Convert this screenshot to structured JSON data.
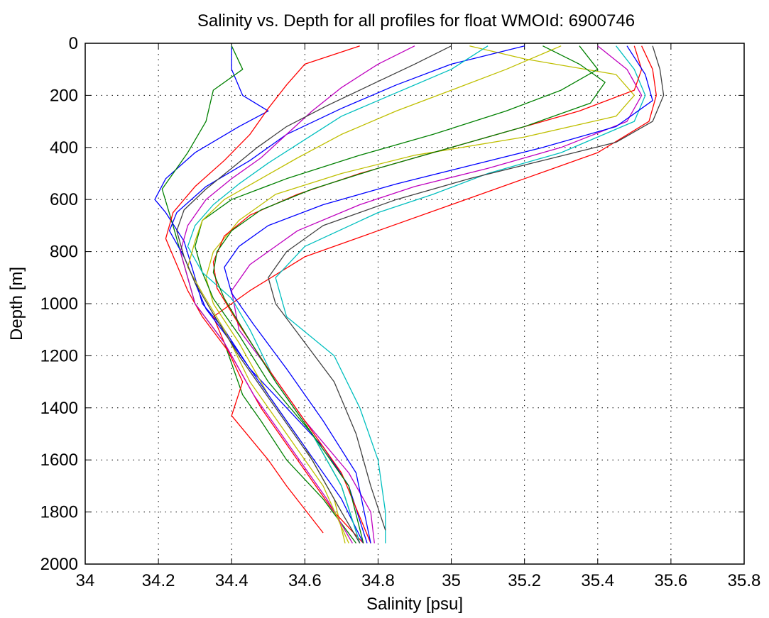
{
  "chart_data": {
    "type": "line",
    "title": "Salinity vs. Depth for all profiles for float WMOId: 6900746",
    "xlabel": "Salinity [psu]",
    "ylabel": "Depth [m]",
    "xlim": [
      34,
      35.8
    ],
    "ylim": [
      0,
      2000
    ],
    "y_reversed": true,
    "grid": true,
    "legend": "none",
    "x_ticks": [
      "34",
      "34.2",
      "34.4",
      "34.6",
      "34.8",
      "35",
      "35.2",
      "35.4",
      "35.6",
      "35.8"
    ],
    "y_ticks": [
      "0",
      "200",
      "400",
      "600",
      "800",
      "1000",
      "1200",
      "1400",
      "1600",
      "1800",
      "2000"
    ],
    "colors": [
      "#0000ff",
      "#008000",
      "#ff0000",
      "#00bfbf",
      "#bf00bf",
      "#bfbf00",
      "#404040"
    ],
    "series": [
      {
        "color": "#0000ff",
        "points": [
          [
            34.4,
            10
          ],
          [
            34.4,
            100
          ],
          [
            34.43,
            200
          ],
          [
            34.5,
            260
          ],
          [
            34.42,
            320
          ],
          [
            34.3,
            420
          ],
          [
            34.22,
            520
          ],
          [
            34.19,
            600
          ],
          [
            34.22,
            650
          ],
          [
            34.27,
            760
          ],
          [
            34.3,
            900
          ],
          [
            34.32,
            1000
          ],
          [
            34.38,
            1100
          ],
          [
            34.45,
            1250
          ],
          [
            34.55,
            1400
          ],
          [
            34.65,
            1550
          ],
          [
            34.72,
            1700
          ],
          [
            34.77,
            1920
          ]
        ]
      },
      {
        "color": "#008000",
        "points": [
          [
            34.4,
            10
          ],
          [
            34.43,
            100
          ],
          [
            34.35,
            180
          ],
          [
            34.33,
            300
          ],
          [
            34.28,
            420
          ],
          [
            34.21,
            560
          ],
          [
            34.24,
            700
          ],
          [
            34.27,
            850
          ],
          [
            34.3,
            1000
          ],
          [
            34.38,
            1150
          ],
          [
            34.43,
            1350
          ],
          [
            34.48,
            1450
          ],
          [
            34.55,
            1600
          ],
          [
            34.65,
            1750
          ],
          [
            34.74,
            1920
          ]
        ]
      },
      {
        "color": "#ff0000",
        "points": [
          [
            35.52,
            10
          ],
          [
            35.55,
            100
          ],
          [
            35.56,
            200
          ],
          [
            35.54,
            300
          ],
          [
            35.4,
            420
          ],
          [
            35.2,
            520
          ],
          [
            35.0,
            620
          ],
          [
            34.8,
            720
          ],
          [
            34.6,
            820
          ],
          [
            34.45,
            950
          ],
          [
            34.35,
            1050
          ],
          [
            34.38,
            1150
          ],
          [
            34.43,
            1300
          ],
          [
            34.4,
            1430
          ],
          [
            34.5,
            1600
          ],
          [
            34.55,
            1700
          ],
          [
            34.65,
            1880
          ]
        ]
      },
      {
        "color": "#00bfbf",
        "points": [
          [
            35.45,
            10
          ],
          [
            35.5,
            100
          ],
          [
            35.53,
            200
          ],
          [
            35.5,
            300
          ],
          [
            35.3,
            420
          ],
          [
            35.1,
            500
          ],
          [
            34.95,
            580
          ],
          [
            34.8,
            650
          ],
          [
            34.6,
            780
          ],
          [
            34.52,
            900
          ],
          [
            34.55,
            1050
          ],
          [
            34.68,
            1200
          ],
          [
            34.75,
            1400
          ],
          [
            34.8,
            1600
          ],
          [
            34.82,
            1800
          ],
          [
            34.82,
            1920
          ]
        ]
      },
      {
        "color": "#bf00bf",
        "points": [
          [
            35.4,
            10
          ],
          [
            35.48,
            100
          ],
          [
            35.52,
            200
          ],
          [
            35.48,
            300
          ],
          [
            35.3,
            400
          ],
          [
            35.1,
            480
          ],
          [
            34.9,
            550
          ],
          [
            34.75,
            620
          ],
          [
            34.58,
            720
          ],
          [
            34.45,
            850
          ],
          [
            34.4,
            950
          ],
          [
            34.42,
            1100
          ],
          [
            34.5,
            1250
          ],
          [
            34.6,
            1450
          ],
          [
            34.72,
            1650
          ],
          [
            34.78,
            1800
          ],
          [
            34.79,
            1920
          ]
        ]
      },
      {
        "color": "#bfbf00",
        "points": [
          [
            35.05,
            10
          ],
          [
            35.2,
            60
          ],
          [
            35.45,
            120
          ],
          [
            35.5,
            200
          ],
          [
            35.45,
            280
          ],
          [
            35.2,
            360
          ],
          [
            34.9,
            430
          ],
          [
            34.7,
            500
          ],
          [
            34.52,
            580
          ],
          [
            34.42,
            680
          ],
          [
            34.35,
            800
          ],
          [
            34.33,
            900
          ],
          [
            34.35,
            1000
          ],
          [
            34.42,
            1150
          ],
          [
            34.5,
            1350
          ],
          [
            34.6,
            1550
          ],
          [
            34.68,
            1750
          ],
          [
            34.71,
            1920
          ]
        ]
      },
      {
        "color": "#404040",
        "points": [
          [
            35.55,
            10
          ],
          [
            35.57,
            100
          ],
          [
            35.58,
            200
          ],
          [
            35.55,
            300
          ],
          [
            35.45,
            380
          ],
          [
            35.25,
            450
          ],
          [
            35.05,
            520
          ],
          [
            34.85,
            600
          ],
          [
            34.65,
            700
          ],
          [
            34.55,
            800
          ],
          [
            34.5,
            900
          ],
          [
            34.52,
            1000
          ],
          [
            34.6,
            1150
          ],
          [
            34.68,
            1300
          ],
          [
            34.74,
            1500
          ],
          [
            34.78,
            1700
          ],
          [
            34.82,
            1870
          ]
        ]
      },
      {
        "color": "#ff0000",
        "points": [
          [
            34.75,
            10
          ],
          [
            34.6,
            80
          ],
          [
            34.55,
            160
          ],
          [
            34.5,
            250
          ],
          [
            34.45,
            350
          ],
          [
            34.38,
            450
          ],
          [
            34.3,
            550
          ],
          [
            34.24,
            650
          ],
          [
            34.22,
            750
          ],
          [
            34.25,
            850
          ],
          [
            34.28,
            950
          ],
          [
            34.32,
            1050
          ],
          [
            34.4,
            1200
          ],
          [
            34.48,
            1400
          ],
          [
            34.58,
            1600
          ],
          [
            34.68,
            1800
          ],
          [
            34.76,
            1920
          ]
        ]
      },
      {
        "color": "#0000ff",
        "points": [
          [
            35.2,
            10
          ],
          [
            35.0,
            80
          ],
          [
            34.85,
            160
          ],
          [
            34.7,
            250
          ],
          [
            34.55,
            350
          ],
          [
            34.45,
            450
          ],
          [
            34.33,
            550
          ],
          [
            34.25,
            650
          ],
          [
            34.23,
            720
          ],
          [
            34.27,
            820
          ],
          [
            34.3,
            920
          ],
          [
            34.33,
            1020
          ],
          [
            34.4,
            1150
          ],
          [
            34.5,
            1350
          ],
          [
            34.6,
            1550
          ],
          [
            34.7,
            1750
          ],
          [
            34.76,
            1920
          ]
        ]
      },
      {
        "color": "#008000",
        "points": [
          [
            35.35,
            10
          ],
          [
            35.4,
            100
          ],
          [
            35.3,
            180
          ],
          [
            35.15,
            260
          ],
          [
            34.95,
            350
          ],
          [
            34.75,
            430
          ],
          [
            34.55,
            520
          ],
          [
            34.4,
            600
          ],
          [
            34.32,
            680
          ],
          [
            34.3,
            780
          ],
          [
            34.32,
            880
          ],
          [
            34.35,
            980
          ],
          [
            34.42,
            1120
          ],
          [
            34.5,
            1300
          ],
          [
            34.62,
            1500
          ],
          [
            34.7,
            1700
          ],
          [
            34.75,
            1920
          ]
        ]
      },
      {
        "color": "#bf00bf",
        "points": [
          [
            34.9,
            10
          ],
          [
            34.8,
            80
          ],
          [
            34.7,
            170
          ],
          [
            34.62,
            260
          ],
          [
            34.55,
            350
          ],
          [
            34.48,
            440
          ],
          [
            34.4,
            520
          ],
          [
            34.33,
            600
          ],
          [
            34.28,
            700
          ],
          [
            34.26,
            800
          ],
          [
            34.28,
            900
          ],
          [
            34.3,
            1000
          ],
          [
            34.38,
            1150
          ],
          [
            34.46,
            1350
          ],
          [
            34.56,
            1550
          ],
          [
            34.66,
            1750
          ],
          [
            34.73,
            1920
          ]
        ]
      },
      {
        "color": "#00bfbf",
        "points": [
          [
            35.1,
            10
          ],
          [
            35.0,
            100
          ],
          [
            34.85,
            190
          ],
          [
            34.7,
            280
          ],
          [
            34.6,
            370
          ],
          [
            34.5,
            460
          ],
          [
            34.42,
            540
          ],
          [
            34.35,
            620
          ],
          [
            34.3,
            700
          ],
          [
            34.28,
            780
          ],
          [
            34.32,
            880
          ],
          [
            34.4,
            980
          ],
          [
            34.45,
            1100
          ],
          [
            34.52,
            1300
          ],
          [
            34.62,
            1500
          ],
          [
            34.7,
            1700
          ],
          [
            34.75,
            1920
          ]
        ]
      },
      {
        "color": "#bfbf00",
        "points": [
          [
            35.3,
            10
          ],
          [
            35.15,
            100
          ],
          [
            35.0,
            180
          ],
          [
            34.85,
            260
          ],
          [
            34.7,
            350
          ],
          [
            34.58,
            440
          ],
          [
            34.48,
            520
          ],
          [
            34.38,
            600
          ],
          [
            34.32,
            680
          ],
          [
            34.3,
            760
          ],
          [
            34.28,
            860
          ],
          [
            34.32,
            960
          ],
          [
            34.38,
            1100
          ],
          [
            34.45,
            1300
          ],
          [
            34.55,
            1500
          ],
          [
            34.65,
            1700
          ],
          [
            34.72,
            1920
          ]
        ]
      },
      {
        "color": "#404040",
        "points": [
          [
            35.0,
            10
          ],
          [
            34.9,
            80
          ],
          [
            34.78,
            160
          ],
          [
            34.66,
            240
          ],
          [
            34.55,
            320
          ],
          [
            34.47,
            400
          ],
          [
            34.4,
            480
          ],
          [
            34.33,
            560
          ],
          [
            34.27,
            640
          ],
          [
            34.25,
            720
          ],
          [
            34.27,
            820
          ],
          [
            34.3,
            920
          ],
          [
            34.35,
            1040
          ],
          [
            34.42,
            1200
          ],
          [
            34.52,
            1400
          ],
          [
            34.62,
            1600
          ],
          [
            34.7,
            1800
          ],
          [
            34.75,
            1920
          ]
        ]
      },
      {
        "color": "#ff0000",
        "points": [
          [
            35.5,
            10
          ],
          [
            35.52,
            100
          ],
          [
            35.5,
            180
          ],
          [
            35.35,
            260
          ],
          [
            35.15,
            340
          ],
          [
            34.95,
            420
          ],
          [
            34.75,
            500
          ],
          [
            34.58,
            580
          ],
          [
            34.45,
            660
          ],
          [
            34.38,
            740
          ],
          [
            34.35,
            840
          ],
          [
            34.36,
            940
          ],
          [
            34.42,
            1080
          ],
          [
            34.5,
            1250
          ],
          [
            34.6,
            1450
          ],
          [
            34.7,
            1650
          ],
          [
            34.78,
            1920
          ]
        ]
      },
      {
        "color": "#0000ff",
        "points": [
          [
            35.48,
            10
          ],
          [
            35.53,
            120
          ],
          [
            35.55,
            220
          ],
          [
            35.45,
            320
          ],
          [
            35.25,
            400
          ],
          [
            35.05,
            470
          ],
          [
            34.85,
            540
          ],
          [
            34.65,
            620
          ],
          [
            34.5,
            700
          ],
          [
            34.42,
            780
          ],
          [
            34.38,
            860
          ],
          [
            34.4,
            960
          ],
          [
            34.46,
            1080
          ],
          [
            34.55,
            1250
          ],
          [
            34.65,
            1450
          ],
          [
            34.74,
            1650
          ],
          [
            34.78,
            1920
          ]
        ]
      },
      {
        "color": "#008000",
        "points": [
          [
            35.25,
            10
          ],
          [
            35.35,
            80
          ],
          [
            35.42,
            150
          ],
          [
            35.38,
            230
          ],
          [
            35.2,
            320
          ],
          [
            35.0,
            400
          ],
          [
            34.8,
            480
          ],
          [
            34.62,
            560
          ],
          [
            34.48,
            640
          ],
          [
            34.4,
            720
          ],
          [
            34.36,
            800
          ],
          [
            34.35,
            880
          ],
          [
            34.38,
            980
          ],
          [
            34.44,
            1120
          ],
          [
            34.52,
            1300
          ],
          [
            34.62,
            1500
          ],
          [
            34.72,
            1700
          ],
          [
            34.76,
            1920
          ]
        ]
      }
    ]
  }
}
